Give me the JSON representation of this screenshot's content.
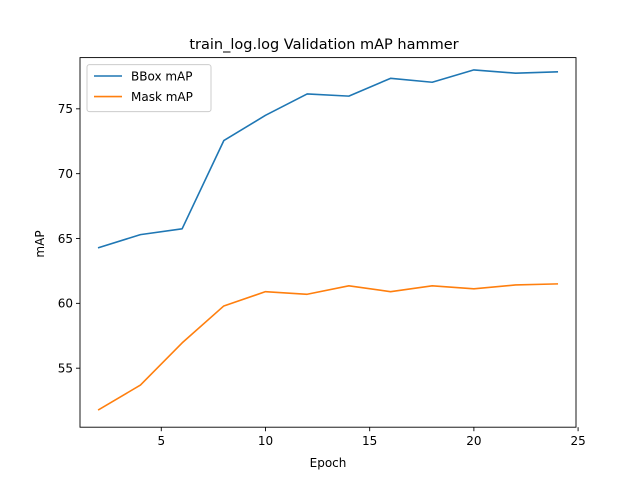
{
  "chart_data": {
    "type": "line",
    "title": "train_log.log Validation mAP hammer",
    "xlabel": "Epoch",
    "ylabel": "mAP",
    "xlim": [
      1.1,
      24.9
    ],
    "ylim": [
      50.45,
      78.95
    ],
    "xticks": [
      5,
      10,
      15,
      20,
      25
    ],
    "yticks": [
      55,
      60,
      65,
      70,
      75
    ],
    "grid": false,
    "legend_position": "top-left",
    "series": [
      {
        "name": "BBox mAP",
        "color": "#1f77b4",
        "x": [
          2,
          4,
          6,
          8,
          10,
          12,
          14,
          16,
          18,
          20,
          22,
          24
        ],
        "y": [
          64.3,
          65.3,
          65.75,
          72.55,
          74.5,
          76.15,
          75.98,
          77.35,
          77.05,
          78.0,
          77.75,
          77.85
        ]
      },
      {
        "name": "Mask mAP",
        "color": "#ff7f0e",
        "x": [
          2,
          4,
          6,
          8,
          10,
          12,
          14,
          16,
          18,
          20,
          22,
          24
        ],
        "y": [
          51.8,
          53.7,
          56.95,
          59.8,
          60.9,
          60.7,
          61.35,
          60.9,
          61.35,
          61.12,
          61.42,
          61.5
        ]
      }
    ]
  }
}
